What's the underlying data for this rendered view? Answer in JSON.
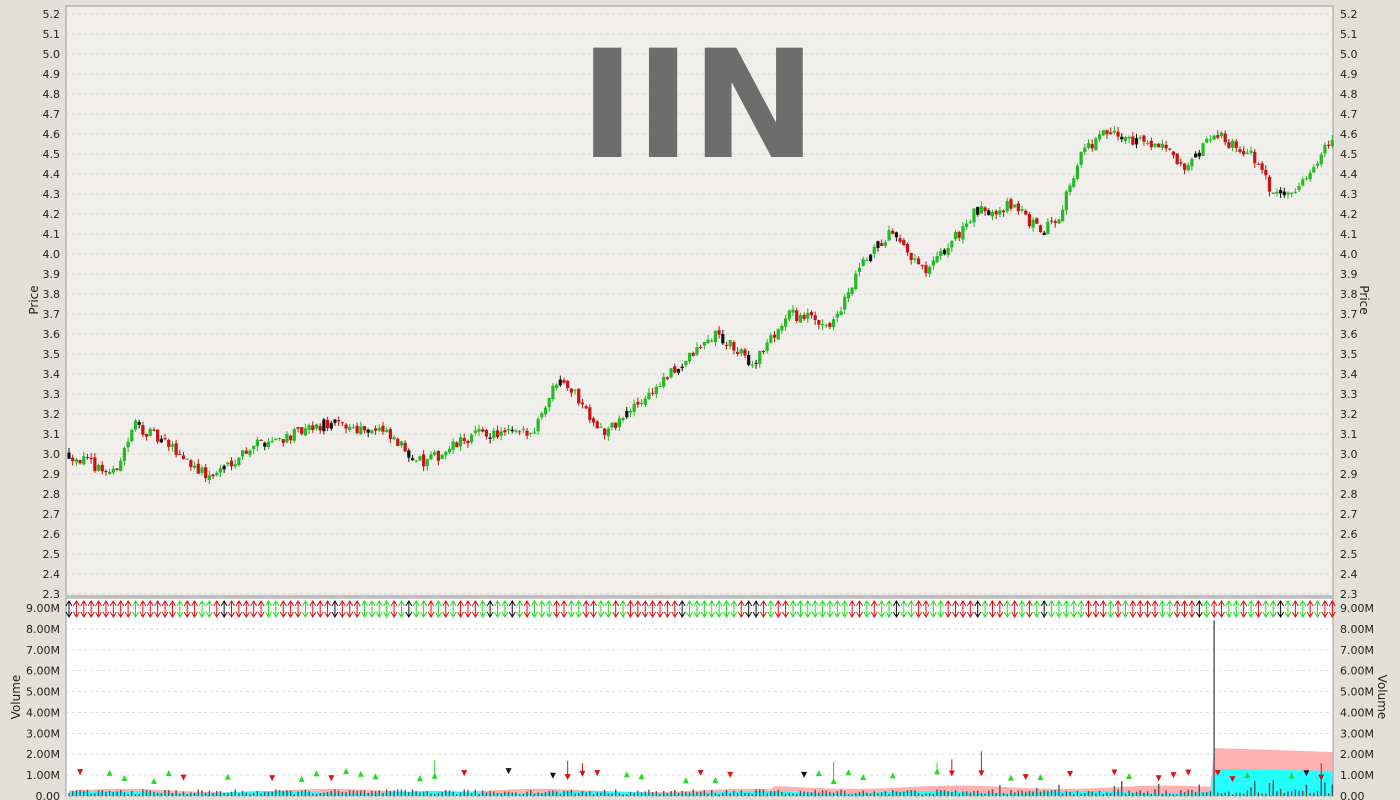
{
  "chart_data": [
    {
      "type": "candlestick",
      "title": "IIN",
      "ylabel": "Price",
      "ylim": [
        2.3,
        5.2
      ],
      "yticks": [
        "2.3",
        "2.4",
        "2.5",
        "2.6",
        "2.7",
        "2.8",
        "2.9",
        "3.0",
        "3.1",
        "3.2",
        "3.3",
        "3.4",
        "3.5",
        "3.6",
        "3.7",
        "3.8",
        "3.9",
        "4.0",
        "4.1",
        "4.2",
        "4.3",
        "4.4",
        "4.5",
        "4.6",
        "4.7",
        "4.8",
        "4.9",
        "5.0",
        "5.1",
        "5.2"
      ],
      "grid": true,
      "colors": {
        "up": "#22bb22",
        "down": "#cc1111",
        "neutral": "#111111",
        "background": "#f0efeb",
        "grid": "#d4d4d4"
      },
      "trend_anchors": [
        [
          0,
          3.0
        ],
        [
          12,
          2.9
        ],
        [
          18,
          3.15
        ],
        [
          30,
          3.0
        ],
        [
          38,
          2.88
        ],
        [
          50,
          3.05
        ],
        [
          62,
          3.1
        ],
        [
          70,
          3.15
        ],
        [
          84,
          3.12
        ],
        [
          96,
          2.95
        ],
        [
          110,
          3.1
        ],
        [
          125,
          3.1
        ],
        [
          133,
          3.4
        ],
        [
          145,
          3.1
        ],
        [
          160,
          3.35
        ],
        [
          175,
          3.6
        ],
        [
          185,
          3.45
        ],
        [
          195,
          3.7
        ],
        [
          207,
          3.65
        ],
        [
          215,
          3.95
        ],
        [
          222,
          4.1
        ],
        [
          232,
          3.9
        ],
        [
          245,
          4.2
        ],
        [
          256,
          4.25
        ],
        [
          263,
          4.1
        ],
        [
          268,
          4.2
        ],
        [
          274,
          4.5
        ],
        [
          280,
          4.6
        ],
        [
          296,
          4.55
        ],
        [
          302,
          4.4
        ],
        [
          310,
          4.6
        ],
        [
          320,
          4.5
        ],
        [
          326,
          4.3
        ],
        [
          334,
          4.35
        ],
        [
          342,
          4.6
        ]
      ],
      "bar_count": 343
    },
    {
      "type": "volume",
      "ylabel": "Volume",
      "ylim": [
        0,
        9000000
      ],
      "yticks": [
        "0.00",
        "1.00M",
        "2.00M",
        "3.00M",
        "4.00M",
        "5.00M",
        "6.00M",
        "7.00M",
        "8.00M",
        "9.00M"
      ],
      "grid": true,
      "colors": {
        "bars": "#555555",
        "band_cyan": "#22ffff",
        "band_pink": "#ffb0b0",
        "up_marker": "#22dd22",
        "down_marker": "#dd1111"
      },
      "typical_volume": 200000,
      "spike": {
        "index": 310,
        "value": 8400000
      },
      "band": {
        "start_index": 310,
        "cyan_top": 1300000,
        "pink_top": 2300000
      }
    }
  ]
}
